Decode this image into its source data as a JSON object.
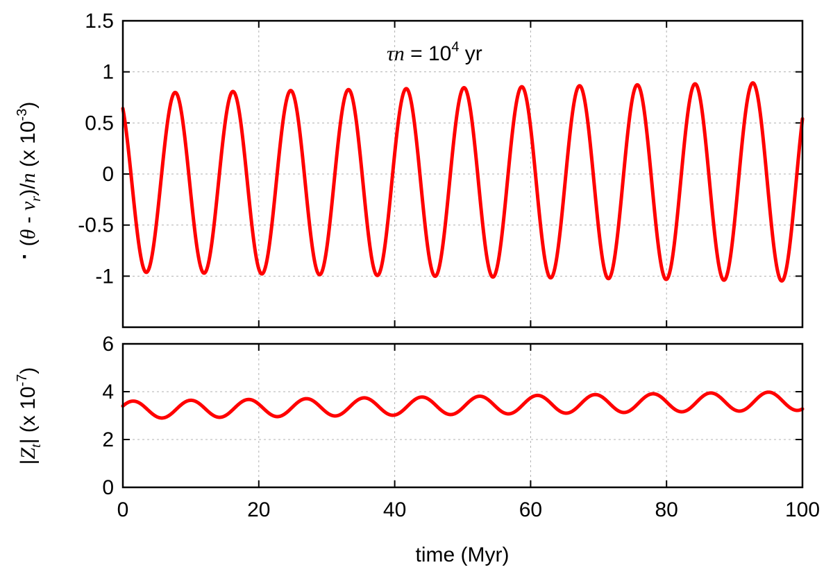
{
  "chart_data": [
    {
      "type": "line",
      "panel": "top",
      "annotation": {
        "prefix": "τn",
        "mid": " = 10",
        "sup": "4",
        "suffix": " yr"
      },
      "ylabel": {
        "open": "(",
        "theta": "θ",
        "dot": "·",
        "minus": " - ",
        "nu": "ν",
        "nu_sub": "r",
        "close": ")/",
        "n": "n",
        "scale": " (x 10",
        "scale_sup": "-3",
        "scale_end": ")"
      },
      "xlim": [
        0,
        100
      ],
      "ylim": [
        -1.5,
        1.5
      ],
      "y_ticks": [
        -1,
        -0.5,
        0,
        0.5,
        1,
        1.5
      ],
      "y_tick_labels": [
        "-1",
        "-0.5",
        "0",
        "0.5",
        "1",
        "1.5"
      ],
      "x_ticks": [
        0,
        20,
        40,
        60,
        80,
        100
      ],
      "grid": true,
      "color": "#ff0000",
      "series": [
        {
          "name": "(θ̇ - ν_r)/n",
          "model": "sinusoid",
          "period": 8.5,
          "x0": 7.7,
          "max_start": 0.79,
          "max_end": 0.9,
          "min_start": -0.96,
          "min_end": -1.05,
          "x_range": [
            0,
            100
          ]
        }
      ]
    },
    {
      "type": "line",
      "panel": "bottom",
      "ylabel": {
        "open": "|",
        "z": "Z",
        "z_sub": "t",
        "close": "|",
        "scale": " (x 10",
        "scale_sup": "-7",
        "scale_end": ")"
      },
      "xlabel": "time (Myr)",
      "xlim": [
        0,
        100
      ],
      "ylim": [
        0,
        6
      ],
      "y_ticks": [
        0,
        2,
        4,
        6
      ],
      "y_tick_labels": [
        "0",
        "2",
        "4",
        "6"
      ],
      "x_ticks": [
        0,
        20,
        40,
        60,
        80,
        100
      ],
      "x_tick_labels": [
        "0",
        "20",
        "40",
        "60",
        "80",
        "100"
      ],
      "grid": true,
      "color": "#ff0000",
      "series": [
        {
          "name": "|Z_t|",
          "model": "sinusoid",
          "period": 8.5,
          "x0": 1.5,
          "max_start": 3.6,
          "max_end": 4.0,
          "min_start": 2.88,
          "min_end": 3.22,
          "x_range": [
            0,
            100
          ]
        }
      ]
    }
  ]
}
